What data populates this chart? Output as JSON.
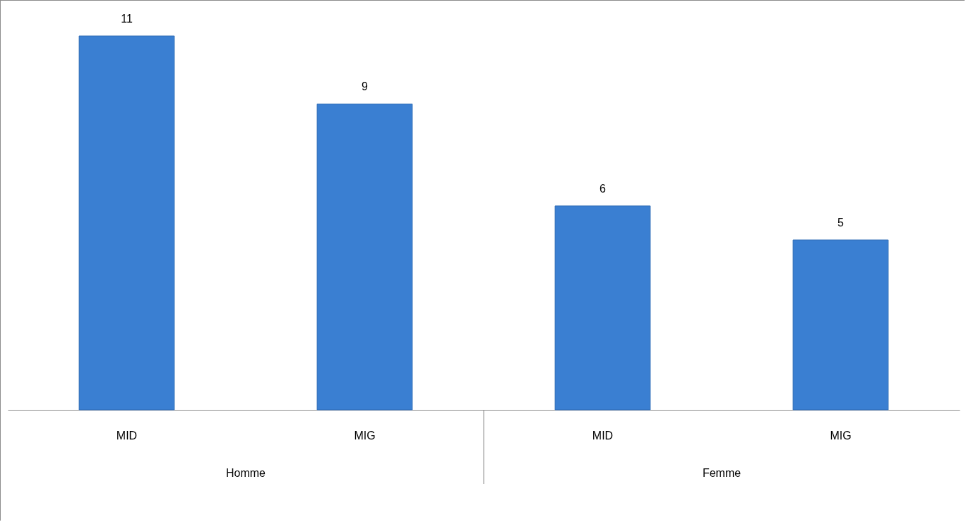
{
  "chart_data": {
    "type": "bar",
    "categories": [
      "MID",
      "MIG",
      "MID",
      "MIG"
    ],
    "values": [
      11,
      9,
      6,
      5
    ],
    "color": "#3a7fd2",
    "data_labels": true,
    "annotations": [
      "Homme",
      "Femme"
    ],
    "grid": false
  }
}
